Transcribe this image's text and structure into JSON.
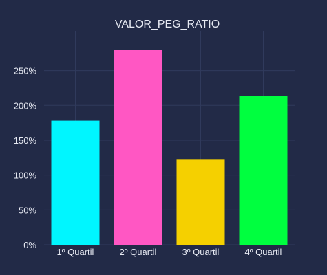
{
  "chart_data": {
    "type": "bar",
    "title": "VALOR_PEG_RATIO",
    "xlabel": "",
    "ylabel": "",
    "categories": [
      "1º Quartil",
      "2º Quartil",
      "3º Quartil",
      "4º Quartil"
    ],
    "values": [
      1.78,
      2.8,
      1.22,
      2.14
    ],
    "colors": [
      "#00f6ff",
      "#ff57c3",
      "#f5d000",
      "#00ff3f"
    ],
    "ylim": [
      0,
      2.95
    ],
    "yticks": [
      0,
      0.5,
      1.0,
      1.5,
      2.0,
      2.5
    ],
    "ytick_labels": [
      "0%",
      "50%",
      "100%",
      "150%",
      "200%",
      "250%"
    ],
    "grid": true,
    "theme": {
      "background": "#222a47",
      "grid_color": "#303a5c",
      "text_color": "#e6e9f2"
    }
  }
}
